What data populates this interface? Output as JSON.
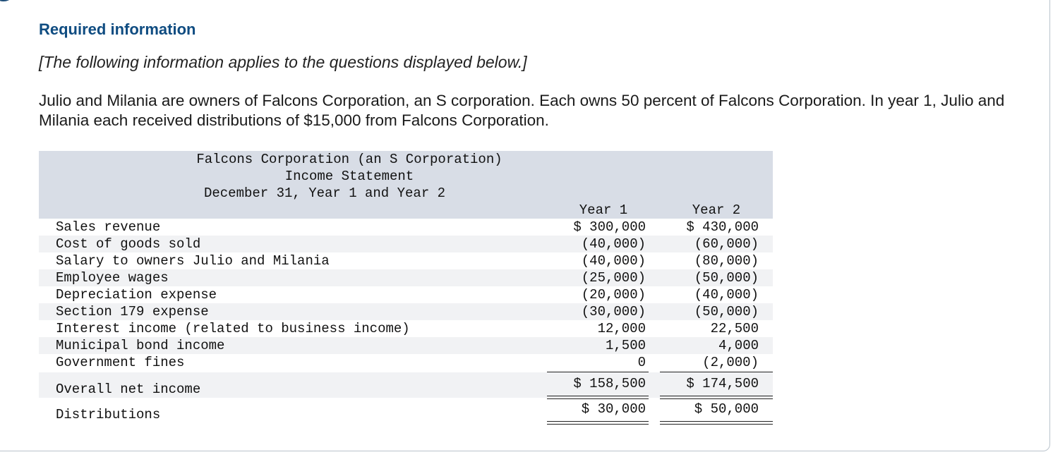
{
  "header": {
    "title": "Required information",
    "note": "[The following information applies to the questions displayed below.]"
  },
  "intro": "Julio and Milania are owners of Falcons Corporation, an S corporation. Each owns 50 percent of Falcons Corporation. In year 1, Julio and Milania each received distributions of $15,000 from Falcons Corporation.",
  "statement": {
    "company": "Falcons Corporation (an S Corporation)",
    "name": "Income Statement",
    "period": "December 31, Year 1 and Year 2",
    "columns": [
      "Year 1",
      "Year 2"
    ],
    "rows": [
      {
        "label": "Sales revenue",
        "y1": "$ 300,000",
        "y2": "$ 430,000"
      },
      {
        "label": "Cost of goods sold",
        "y1": "(40,000)",
        "y2": "(60,000)"
      },
      {
        "label": "Salary to owners Julio and Milania",
        "y1": "(40,000)",
        "y2": "(80,000)"
      },
      {
        "label": "Employee wages",
        "y1": "(25,000)",
        "y2": "(50,000)"
      },
      {
        "label": "Depreciation expense",
        "y1": "(20,000)",
        "y2": "(40,000)"
      },
      {
        "label": "Section 179 expense",
        "y1": "(30,000)",
        "y2": "(50,000)"
      },
      {
        "label": "Interest income (related to business income)",
        "y1": "12,000",
        "y2": "22,500"
      },
      {
        "label": "Municipal bond income",
        "y1": "1,500",
        "y2": "4,000"
      },
      {
        "label": "Government fines",
        "y1": "0",
        "y2": "(2,000)"
      }
    ],
    "net_income": {
      "label": "Overall net income",
      "y1": "$ 158,500",
      "y2": "$ 174,500"
    },
    "distributions": {
      "label": "Distributions",
      "y1": "$ 30,000",
      "y2": "$ 50,000"
    }
  }
}
